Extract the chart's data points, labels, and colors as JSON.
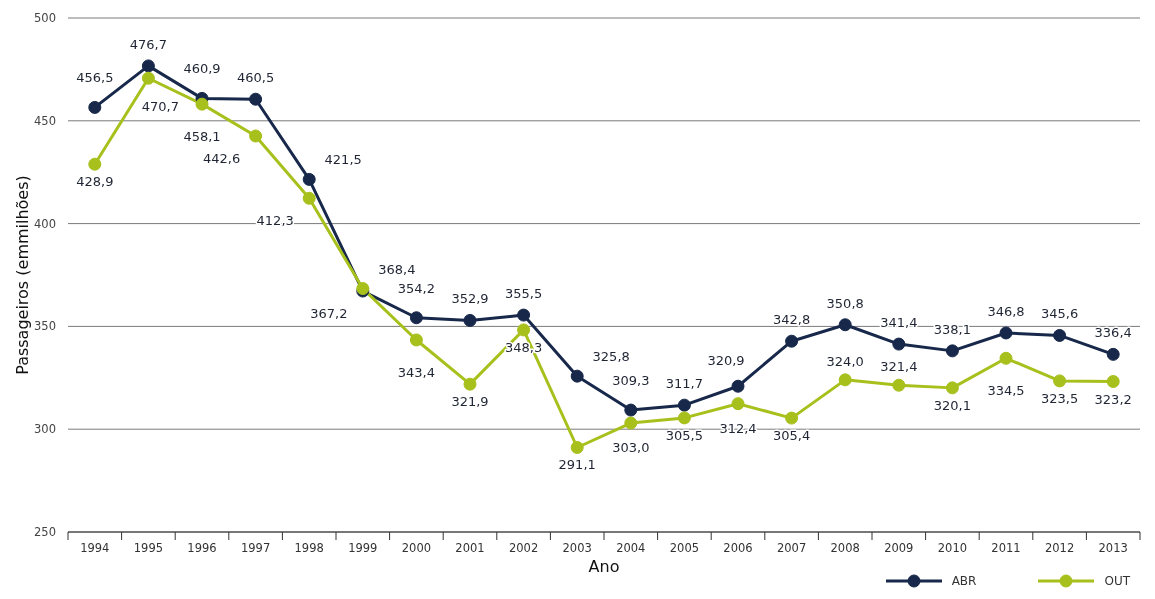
{
  "chart_data": {
    "type": "line",
    "xlabel": "Ano",
    "ylabel": "Passageiros (emmilhões)",
    "categories": [
      "1994",
      "1995",
      "1996",
      "1997",
      "1998",
      "1999",
      "2000",
      "2001",
      "2002",
      "2003",
      "2004",
      "2005",
      "2006",
      "2007",
      "2008",
      "2009",
      "2010",
      "2011",
      "2012",
      "2013"
    ],
    "series": [
      {
        "name": "ABR",
        "color": "#17284a",
        "values": [
          456.5,
          476.7,
          460.9,
          460.5,
          421.5,
          367.2,
          354.2,
          352.9,
          355.5,
          325.8,
          309.3,
          311.7,
          320.9,
          342.8,
          350.8,
          341.4,
          338.1,
          346.8,
          345.6,
          336.4
        ],
        "value_labels": [
          "456,5",
          "476,7",
          "460,9",
          "460,5",
          "421,5",
          "367,2",
          "354,2",
          "352,9",
          "355,5",
          "325,8",
          "309,3",
          "311,7",
          "320,9",
          "342,8",
          "350,8",
          "341,4",
          "338,1",
          "346,8",
          "345,6",
          "336,4"
        ]
      },
      {
        "name": "OUT",
        "color": "#a8c01c",
        "values": [
          428.9,
          470.7,
          458.1,
          442.6,
          412.3,
          368.4,
          343.4,
          321.9,
          348.3,
          291.1,
          303.0,
          305.5,
          312.4,
          305.4,
          324.0,
          321.4,
          320.1,
          334.5,
          323.5,
          323.2
        ],
        "value_labels": [
          "428,9",
          "470,7",
          "458,1",
          "442,6",
          "412,3",
          "368,4",
          "343,4",
          "321,9",
          "348,3",
          "291,1",
          "303,0",
          "305,5",
          "312,4",
          "305,4",
          "324,0",
          "321,4",
          "320,1",
          "334,5",
          "323,5",
          "323,2"
        ]
      }
    ],
    "ylim": [
      250,
      500
    ],
    "yticks": [
      250,
      300,
      350,
      400,
      450,
      500
    ],
    "grid": "y",
    "legend": "bottom right",
    "marker": "circle",
    "line_style": "solid"
  }
}
